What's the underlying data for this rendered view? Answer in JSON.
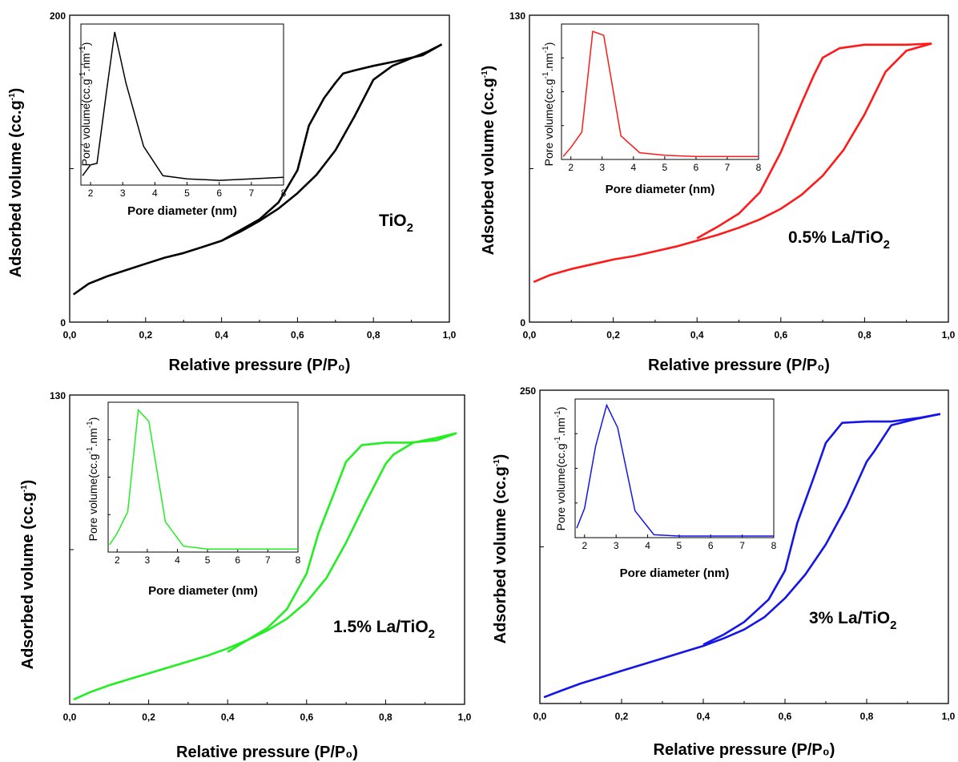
{
  "chart_data": [
    {
      "type": "line",
      "title": "",
      "sample_label": "TiO2",
      "sample_label_parts": {
        "main": "TiO",
        "sub": "2"
      },
      "xlabel": "Relative pressure (P/P₀)",
      "ylabel": "Adsorbed volume (cc.g⁻¹)",
      "xlim": [
        0,
        1
      ],
      "ylim": [
        0,
        200
      ],
      "x_ticks": [
        "0,0",
        "0,2",
        "0,4",
        "0,6",
        "0,8",
        "1,0"
      ],
      "y_ticks": [
        "0",
        "200"
      ],
      "color": "#000000",
      "series": [
        {
          "x": [
            0.01,
            0.05,
            0.1,
            0.15,
            0.2,
            0.25,
            0.3,
            0.35,
            0.4,
            0.45,
            0.5,
            0.55,
            0.6,
            0.65,
            0.7,
            0.75,
            0.8,
            0.85,
            0.9,
            0.94,
            0.98
          ],
          "values": [
            18,
            25,
            30,
            34,
            38,
            42,
            45,
            49,
            53,
            59,
            66,
            74,
            84,
            96,
            112,
            134,
            158,
            167,
            172,
            176,
            181
          ]
        },
        {
          "x": [
            0.98,
            0.93,
            0.86,
            0.8,
            0.75,
            0.72,
            0.7,
            0.67,
            0.63,
            0.6,
            0.55,
            0.5,
            0.45,
            0.4
          ],
          "values": [
            181,
            174,
            170,
            167,
            164,
            162,
            156,
            146,
            128,
            99,
            78,
            67,
            60,
            53
          ]
        }
      ],
      "inset": {
        "type": "line",
        "xlabel": "Pore diameter (nm)",
        "ylabel": "Pore volume(cc.g⁻¹.nm⁻¹)",
        "xlim": [
          1.7,
          8
        ],
        "ylim": [
          0,
          1
        ],
        "x_ticks": [
          "2",
          "3",
          "4",
          "5",
          "6",
          "7",
          "8"
        ],
        "series": [
          {
            "x": [
              1.75,
              2.0,
              2.2,
              2.5,
              2.75,
              3.1,
              3.65,
              4.25,
              5.0,
              6.0,
              7.0,
              8.0
            ],
            "values": [
              0.05,
              0.12,
              0.13,
              0.6,
              0.98,
              0.65,
              0.24,
              0.05,
              0.03,
              0.02,
              0.03,
              0.04
            ]
          }
        ]
      }
    },
    {
      "type": "line",
      "title": "",
      "sample_label": "0.5% La/TiO2",
      "sample_label_parts": {
        "main": "0.5% La/TiO",
        "sub": "2"
      },
      "xlabel": "Relative pressure (P/P₀)",
      "ylabel": "Adsorbed volume (cc.g⁻¹)",
      "xlim": [
        0,
        1
      ],
      "ylim": [
        0,
        130
      ],
      "x_ticks": [
        "0,0",
        "0,2",
        "0,4",
        "0,6",
        "0,8",
        "1,0"
      ],
      "y_ticks": [
        "0",
        "130"
      ],
      "color": "#ff1a1a",
      "series": [
        {
          "x": [
            0.01,
            0.05,
            0.1,
            0.15,
            0.2,
            0.25,
            0.3,
            0.35,
            0.4,
            0.45,
            0.5,
            0.55,
            0.6,
            0.65,
            0.7,
            0.75,
            0.8,
            0.85,
            0.9,
            0.96
          ],
          "values": [
            17,
            20,
            22.5,
            24.5,
            26.5,
            28,
            30,
            32,
            34.5,
            37,
            40,
            43.5,
            48,
            54,
            62,
            73,
            88,
            106,
            115,
            118
          ]
        },
        {
          "x": [
            0.96,
            0.9,
            0.8,
            0.74,
            0.7,
            0.68,
            0.65,
            0.6,
            0.55,
            0.5,
            0.45,
            0.4
          ],
          "values": [
            118,
            117.5,
            117.5,
            116,
            112,
            105,
            93,
            72,
            55,
            46,
            40.5,
            35.5
          ]
        }
      ],
      "inset": {
        "type": "line",
        "xlabel": "Pore diameter (nm)",
        "ylabel": "Pore volume(cc.g⁻¹.nm⁻¹)",
        "xlim": [
          1.7,
          8
        ],
        "ylim": [
          0,
          1
        ],
        "x_ticks": [
          "2",
          "3",
          "4",
          "5",
          "6",
          "7",
          "8"
        ],
        "series": [
          {
            "x": [
              1.75,
              2.0,
              2.35,
              2.7,
              3.05,
              3.6,
              4.2,
              5.0,
              6.0,
              7.0,
              8.0
            ],
            "values": [
              0.01,
              0.08,
              0.2,
              0.98,
              0.95,
              0.17,
              0.04,
              0.02,
              0.01,
              0.01,
              0.01
            ]
          }
        ]
      }
    },
    {
      "type": "line",
      "title": "",
      "sample_label": "1.5% La/TiO2",
      "sample_label_parts": {
        "main": "1.5% La/TiO",
        "sub": "2"
      },
      "xlabel": "Relative pressure (P/P₀)",
      "ylabel": "Adsorbed volume (cc.g⁻¹)",
      "xlim": [
        0,
        1
      ],
      "ylim": [
        0,
        130
      ],
      "x_ticks": [
        "0,0",
        "0,2",
        "0,4",
        "0,6",
        "0,8",
        "1,0"
      ],
      "y_ticks": [
        "130"
      ],
      "color": "#22ee22",
      "series": [
        {
          "x": [
            0.01,
            0.05,
            0.1,
            0.15,
            0.2,
            0.25,
            0.3,
            0.35,
            0.4,
            0.45,
            0.5,
            0.55,
            0.6,
            0.65,
            0.7,
            0.75,
            0.8,
            0.82,
            0.87,
            0.93,
            0.98
          ],
          "values": [
            2,
            5,
            8,
            10.5,
            13,
            15.5,
            18,
            20.5,
            23.5,
            27,
            31,
            36,
            43,
            53,
            68,
            85,
            101,
            105,
            110,
            112,
            114
          ]
        },
        {
          "x": [
            0.98,
            0.93,
            0.86,
            0.8,
            0.74,
            0.7,
            0.67,
            0.63,
            0.6,
            0.55,
            0.5,
            0.45,
            0.4
          ],
          "values": [
            114,
            111,
            110,
            110,
            109,
            102,
            89,
            72,
            55,
            40,
            32,
            27,
            22
          ]
        }
      ],
      "inset": {
        "type": "line",
        "xlabel": "Pore diameter (nm)",
        "ylabel": "Pore volume(cc.g⁻¹.nm⁻¹)",
        "xlim": [
          1.7,
          8
        ],
        "ylim": [
          0,
          1
        ],
        "x_ticks": [
          "2",
          "3",
          "4",
          "5",
          "6",
          "7",
          "8"
        ],
        "series": [
          {
            "x": [
              1.75,
              2.0,
              2.35,
              2.7,
              3.05,
              3.6,
              4.2,
              5.0,
              6.0,
              7.0,
              8.0
            ],
            "values": [
              0.04,
              0.12,
              0.27,
              0.98,
              0.9,
              0.2,
              0.03,
              0.01,
              0.01,
              0.01,
              0.01
            ]
          }
        ]
      }
    },
    {
      "type": "line",
      "title": "",
      "sample_label": "3% La/TiO2",
      "sample_label_parts": {
        "main": "3% La/TiO",
        "sub": "2"
      },
      "xlabel": "Relative pressure (P/P₀)",
      "ylabel": "Adsorbed volume (cc.g⁻¹)",
      "xlim": [
        0,
        1
      ],
      "ylim": [
        0,
        250
      ],
      "x_ticks": [
        "0,0",
        "0,2",
        "0,4",
        "0,6",
        "0,8",
        "1,0"
      ],
      "y_ticks": [
        "250"
      ],
      "color": "#1515e8",
      "series": [
        {
          "x": [
            0.01,
            0.05,
            0.1,
            0.15,
            0.2,
            0.25,
            0.3,
            0.35,
            0.4,
            0.45,
            0.5,
            0.55,
            0.6,
            0.65,
            0.7,
            0.75,
            0.8,
            0.82,
            0.86,
            0.92,
            0.98
          ],
          "values": [
            5,
            10,
            16,
            21,
            26,
            31,
            36,
            41,
            46,
            52,
            59,
            69,
            84,
            103,
            127,
            157,
            193,
            202,
            222,
            227,
            231
          ]
        },
        {
          "x": [
            0.98,
            0.93,
            0.86,
            0.8,
            0.74,
            0.7,
            0.67,
            0.63,
            0.6,
            0.56,
            0.53,
            0.5,
            0.45,
            0.4
          ],
          "values": [
            231,
            228,
            225,
            225,
            224,
            208,
            180,
            144,
            106,
            83,
            74,
            65,
            55,
            47
          ]
        }
      ],
      "inset": {
        "type": "line",
        "xlabel": "Pore diameter (nm)",
        "ylabel": "Pore volume(cc.g⁻¹.nm⁻¹)",
        "xlim": [
          1.7,
          8
        ],
        "ylim": [
          0,
          1
        ],
        "x_ticks": [
          "2",
          "3",
          "4",
          "5",
          "6",
          "7",
          "8"
        ],
        "series": [
          {
            "x": [
              1.75,
              2.0,
              2.35,
              2.7,
              3.05,
              3.6,
              4.2,
              5.0,
              6.0,
              7.0,
              8.0
            ],
            "values": [
              0.06,
              0.21,
              0.68,
              0.99,
              0.82,
              0.19,
              0.01,
              0.0,
              0.0,
              0.0,
              0.0
            ]
          }
        ]
      }
    }
  ]
}
